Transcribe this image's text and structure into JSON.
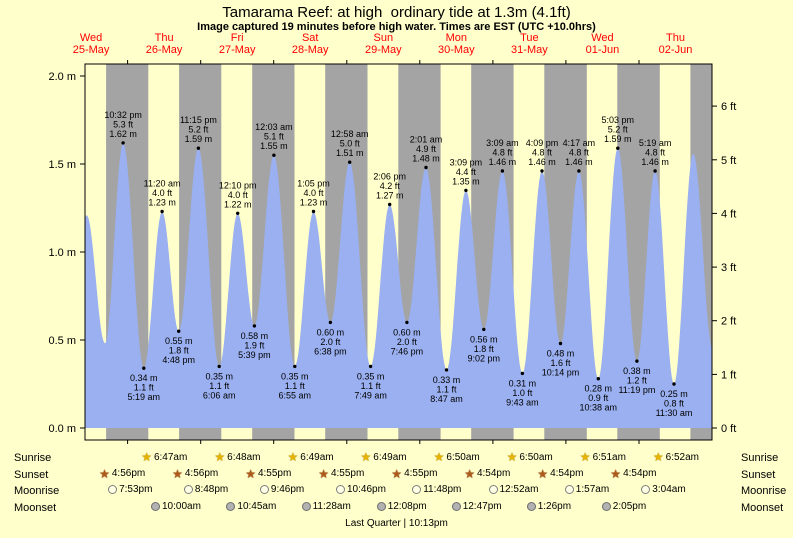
{
  "chart_data": {
    "type": "area",
    "title": "Tamarama Reef: at high  ordinary tide at 1.3m (4.1ft)",
    "subtitle": "Image captured 19 minutes before high water. Times are EST (UTC +10.0hrs)",
    "hours_total": 206,
    "days": [
      {
        "day": "Wed",
        "date": "25-May"
      },
      {
        "day": "Thu",
        "date": "26-May"
      },
      {
        "day": "Fri",
        "date": "27-May"
      },
      {
        "day": "Sat",
        "date": "28-May"
      },
      {
        "day": "Sun",
        "date": "29-May"
      },
      {
        "day": "Mon",
        "date": "30-May"
      },
      {
        "day": "Tue",
        "date": "31-May"
      },
      {
        "day": "Wed",
        "date": "01-Jun"
      },
      {
        "day": "Thu",
        "date": "02-Jun"
      }
    ],
    "midnights_hours": [
      14,
      38,
      62,
      86,
      110,
      134,
      158,
      182
    ],
    "night_bands_hours": [
      [
        6.93,
        20.78
      ],
      [
        30.93,
        44.8
      ],
      [
        54.92,
        68.82
      ],
      [
        78.92,
        92.82
      ],
      [
        102.92,
        116.83
      ],
      [
        126.9,
        140.83
      ],
      [
        150.9,
        164.85
      ],
      [
        174.9,
        188.87
      ],
      [
        198.9,
        206
      ]
    ],
    "y_axis_m": [
      {
        "v": 0.0,
        "label": "0.0 m"
      },
      {
        "v": 0.5,
        "label": "0.5 m"
      },
      {
        "v": 1.0,
        "label": "1.0 m"
      },
      {
        "v": 1.5,
        "label": "1.5 m"
      },
      {
        "v": 2.0,
        "label": "2.0 m"
      }
    ],
    "y_axis_ft": [
      {
        "v": 0,
        "label": "0 ft"
      },
      {
        "v": 1,
        "label": "1 ft"
      },
      {
        "v": 2,
        "label": "2 ft"
      },
      {
        "v": 3,
        "label": "3 ft"
      },
      {
        "v": 4,
        "label": "4 ft"
      },
      {
        "v": 5,
        "label": "5 ft"
      },
      {
        "v": 6,
        "label": "6 ft"
      }
    ],
    "extremes": [
      {
        "t": -5.5,
        "h": 0.3,
        "type": "L"
      },
      {
        "t": 0.53,
        "h": 1.21,
        "type": "H"
      },
      {
        "t": 6.58,
        "h": 0.48,
        "type": "L"
      },
      {
        "t": 12.53,
        "h": 1.62,
        "type": "H",
        "lines": [
          "10:32 pm",
          "5.3 ft",
          "1.62 m"
        ]
      },
      {
        "t": 19.32,
        "h": 0.34,
        "type": "L",
        "lines": [
          "0.34 m",
          "1.1 ft",
          "5:19 am"
        ]
      },
      {
        "t": 25.33,
        "h": 1.23,
        "type": "H",
        "lines": [
          "11:20 am",
          "4.0 ft",
          "1.23 m"
        ]
      },
      {
        "t": 30.8,
        "h": 0.55,
        "type": "L",
        "lines": [
          "0.55 m",
          "1.8 ft",
          "4:48 pm"
        ]
      },
      {
        "t": 37.25,
        "h": 1.59,
        "type": "H",
        "lines": [
          "11:15 pm",
          "5.2 ft",
          "1.59 m"
        ]
      },
      {
        "t": 44.1,
        "h": 0.35,
        "type": "L",
        "lines": [
          "0.35 m",
          "1.1 ft",
          "6:06 am"
        ]
      },
      {
        "t": 50.17,
        "h": 1.22,
        "type": "H",
        "lines": [
          "12:10 pm",
          "4.0 ft",
          "1.22 m"
        ]
      },
      {
        "t": 55.65,
        "h": 0.58,
        "type": "L",
        "lines": [
          "0.58 m",
          "1.9 ft",
          "5:39 pm"
        ]
      },
      {
        "t": 62.05,
        "h": 1.55,
        "type": "H",
        "lines": [
          "12:03 am",
          "5.1 ft",
          "1.55 m"
        ]
      },
      {
        "t": 68.92,
        "h": 0.35,
        "type": "L",
        "lines": [
          "0.35 m",
          "1.1 ft",
          "6:55 am"
        ]
      },
      {
        "t": 75.08,
        "h": 1.23,
        "type": "H",
        "lines": [
          "1:05 pm",
          "4.0 ft",
          "1.23 m"
        ]
      },
      {
        "t": 80.63,
        "h": 0.6,
        "type": "L",
        "lines": [
          "0.60 m",
          "2.0 ft",
          "6:38 pm"
        ]
      },
      {
        "t": 86.97,
        "h": 1.51,
        "type": "H",
        "lines": [
          "12:58 am",
          "5.0 ft",
          "1.51 m"
        ]
      },
      {
        "t": 93.82,
        "h": 0.35,
        "type": "L",
        "lines": [
          "0.35 m",
          "1.1 ft",
          "7:49 am"
        ]
      },
      {
        "t": 100.1,
        "h": 1.27,
        "type": "H",
        "lines": [
          "2:06 pm",
          "4.2 ft",
          "1.27 m"
        ]
      },
      {
        "t": 105.77,
        "h": 0.6,
        "type": "L",
        "lines": [
          "0.60 m",
          "2.0 ft",
          "7:46 pm"
        ]
      },
      {
        "t": 112.02,
        "h": 1.48,
        "type": "H",
        "lines": [
          "2:01 am",
          "4.9 ft",
          "1.48 m"
        ]
      },
      {
        "t": 118.78,
        "h": 0.33,
        "type": "L",
        "lines": [
          "0.33 m",
          "1.1 ft",
          "8:47 am"
        ]
      },
      {
        "t": 125.15,
        "h": 1.35,
        "type": "H",
        "lines": [
          "3:09 pm",
          "4.4 ft",
          "1.35 m"
        ]
      },
      {
        "t": 131.03,
        "h": 0.56,
        "type": "L",
        "lines": [
          "0.56 m",
          "1.8 ft",
          "9:02 pm"
        ]
      },
      {
        "t": 137.15,
        "h": 1.46,
        "type": "H",
        "lines": [
          "3:09 am",
          "4.8 ft",
          "1.46 m"
        ]
      },
      {
        "t": 143.72,
        "h": 0.31,
        "type": "L",
        "lines": [
          "0.31 m",
          "1.0 ft",
          "9:43 am"
        ]
      },
      {
        "t": 150.15,
        "h": 1.46,
        "type": "H",
        "lines": [
          "4:09 pm",
          "4.8 ft",
          "1.46 m"
        ]
      },
      {
        "t": 156.23,
        "h": 0.48,
        "type": "L",
        "lines": [
          "0.48 m",
          "1.6 ft",
          "10:14 pm"
        ]
      },
      {
        "t": 162.28,
        "h": 1.46,
        "type": "H",
        "lines": [
          "4:17 am",
          "4.8 ft",
          "1.46 m"
        ]
      },
      {
        "t": 168.63,
        "h": 0.28,
        "type": "L",
        "lines": [
          "0.28 m",
          "0.9 ft",
          "10:38 am"
        ]
      },
      {
        "t": 175.05,
        "h": 1.59,
        "type": "H",
        "lines": [
          "5:03 pm",
          "5.2 ft",
          "1.59 m"
        ]
      },
      {
        "t": 181.32,
        "h": 0.38,
        "type": "L",
        "lines": [
          "0.38 m",
          "1.2 ft",
          "11:19 pm"
        ]
      },
      {
        "t": 187.32,
        "h": 1.46,
        "type": "H",
        "lines": [
          "5:19 am",
          "4.8 ft",
          "1.46 m"
        ]
      },
      {
        "t": 193.5,
        "h": 0.25,
        "type": "L",
        "lines": [
          "0.25 m",
          "0.8 ft",
          "11:30 am"
        ]
      },
      {
        "t": 199.83,
        "h": 1.56,
        "type": "H"
      },
      {
        "t": 206.2,
        "h": 0.45,
        "type": "L"
      }
    ],
    "colors": {
      "day": "#ffffcc",
      "night": "#a4a4a4",
      "tide": "#9ab0f0",
      "day_label": "#ff0000",
      "axis": "#000000"
    }
  },
  "astro": {
    "rows": [
      {
        "key": "sunrise",
        "label": "Sunrise",
        "icon": "star-rise",
        "entries": [
          {
            "h": 20.78,
            "time": "6:47am"
          },
          {
            "h": 44.8,
            "time": "6:48am"
          },
          {
            "h": 68.82,
            "time": "6:49am"
          },
          {
            "h": 92.82,
            "time": "6:49am"
          },
          {
            "h": 116.83,
            "time": "6:50am"
          },
          {
            "h": 140.83,
            "time": "6:50am"
          },
          {
            "h": 164.85,
            "time": "6:51am"
          },
          {
            "h": 188.87,
            "time": "6:52am"
          }
        ]
      },
      {
        "key": "sunset",
        "label": "Sunset",
        "icon": "star-set",
        "entries": [
          {
            "h": 6.93,
            "time": "4:56pm"
          },
          {
            "h": 30.93,
            "time": "4:56pm"
          },
          {
            "h": 54.92,
            "time": "4:55pm"
          },
          {
            "h": 78.92,
            "time": "4:55pm"
          },
          {
            "h": 102.92,
            "time": "4:55pm"
          },
          {
            "h": 126.9,
            "time": "4:54pm"
          },
          {
            "h": 150.9,
            "time": "4:54pm"
          },
          {
            "h": 174.9,
            "time": "4:54pm"
          }
        ]
      },
      {
        "key": "moonrise",
        "label": "Moonrise",
        "icon": "moon-rise",
        "entries": [
          {
            "h": 9.88,
            "time": "7:53pm"
          },
          {
            "h": 34.8,
            "time": "8:48pm"
          },
          {
            "h": 59.77,
            "time": "9:46pm"
          },
          {
            "h": 84.77,
            "time": "10:46pm"
          },
          {
            "h": 109.8,
            "time": "11:48pm"
          },
          {
            "h": 134.87,
            "time": "12:52am"
          },
          {
            "h": 159.95,
            "time": "1:57am"
          },
          {
            "h": 185.07,
            "time": "3:04am"
          }
        ]
      },
      {
        "key": "moonset",
        "label": "Moonset",
        "icon": "moon-set",
        "entries": [
          {
            "h": 24.0,
            "time": "10:00am"
          },
          {
            "h": 48.75,
            "time": "10:45am"
          },
          {
            "h": 73.47,
            "time": "11:28am"
          },
          {
            "h": 98.13,
            "time": "12:08pm"
          },
          {
            "h": 122.78,
            "time": "12:47pm"
          },
          {
            "h": 147.43,
            "time": "1:26pm"
          },
          {
            "h": 172.08,
            "time": "2:05pm"
          }
        ]
      }
    ]
  },
  "footer": "Last Quarter | 10:13pm"
}
